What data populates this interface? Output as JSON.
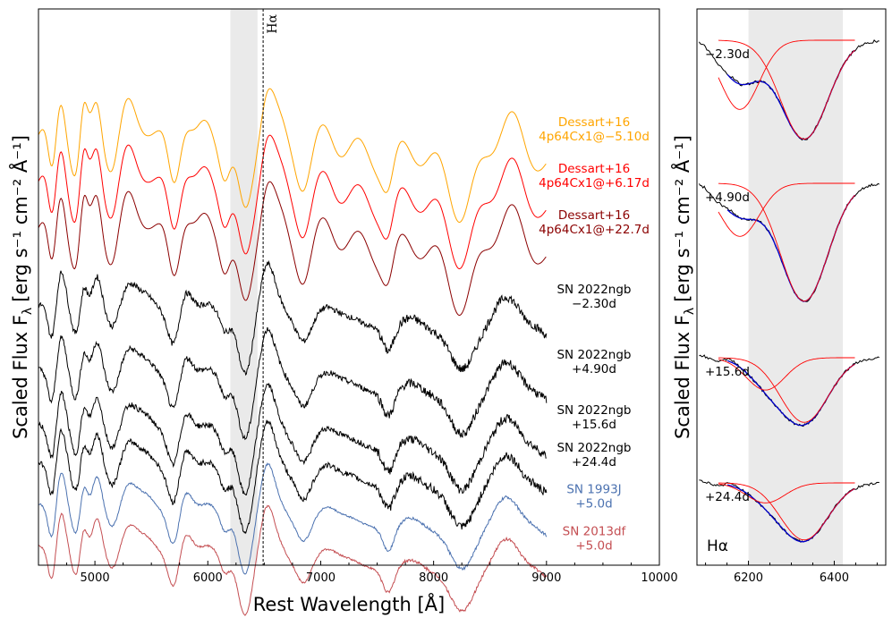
{
  "chart_data": [
    {
      "type": "line",
      "panel": "left",
      "xlabel": "Rest Wavelength [Å]",
      "ylabel": "Scaled Flux F",
      "ylabel_sub": "λ",
      "ylabel_units": "[erg s⁻¹ cm⁻² Å⁻¹]",
      "xlim": [
        4500,
        10000
      ],
      "xticks": [
        5000,
        6000,
        7000,
        8000,
        9000,
        10000
      ],
      "shaded_region": [
        6200,
        6440
      ],
      "vline": 6490,
      "vline_label": "Hα",
      "series": [
        {
          "name": "Dessart+16 4p64Cx1@−5.10d",
          "label_line1": "Dessart+16",
          "label_line2": "4p64Cx1@−5.10d",
          "color": "#ffa500",
          "offset": 8.6,
          "kind": "model"
        },
        {
          "name": "Dessart+16 4p64Cx1@+6.17d",
          "label_line1": "Dessart+16",
          "label_line2": "4p64Cx1@+6.17d",
          "color": "#ff0000",
          "offset": 7.6,
          "kind": "model"
        },
        {
          "name": "Dessart+16 4p64Cx1@+22.7d",
          "label_line1": "Dessart+16",
          "label_line2": "4p64Cx1@+22.7d",
          "color": "#8b0000",
          "offset": 6.6,
          "kind": "model"
        },
        {
          "name": "SN 2022ngb −2.30d",
          "label_line1": "SN 2022ngb",
          "label_line2": "−2.30d",
          "color": "#000000",
          "offset": 5.0,
          "kind": "obs"
        },
        {
          "name": "SN 2022ngb +4.90d",
          "label_line1": "SN 2022ngb",
          "label_line2": "+4.90d",
          "color": "#000000",
          "offset": 3.6,
          "kind": "obs"
        },
        {
          "name": "SN 2022ngb +15.6d",
          "label_line1": "SN 2022ngb",
          "label_line2": "+15.6d",
          "color": "#000000",
          "offset": 2.4,
          "kind": "obs"
        },
        {
          "name": "SN 2022ngb +24.4d",
          "label_line1": "SN 2022ngb",
          "label_line2": "+24.4d",
          "color": "#000000",
          "offset": 1.6,
          "kind": "obs"
        },
        {
          "name": "SN 1993J +5.0d",
          "label_line1": "SN 1993J",
          "label_line2": "+5.0d",
          "color": "#4c72b0",
          "offset": 0.7,
          "kind": "ref"
        },
        {
          "name": "SN 2013df +5.0d",
          "label_line1": "SN 2013df",
          "label_line2": "+5.0d",
          "color": "#c44e52",
          "offset": -0.2,
          "kind": "ref"
        }
      ]
    },
    {
      "type": "line",
      "panel": "right",
      "xlabel": "",
      "ylabel": "Scaled Flux F",
      "ylabel_sub": "λ",
      "ylabel_units": "[erg s⁻¹ cm⁻² Å⁻¹]",
      "xlim": [
        6080,
        6520
      ],
      "xticks": [
        6200,
        6400
      ],
      "shaded_region": [
        6200,
        6420
      ],
      "panel_label": "Hα",
      "epochs": [
        {
          "label": "−2.30d",
          "offset": 3
        },
        {
          "label": "+4.90d",
          "offset": 2
        },
        {
          "label": "+15.6d",
          "offset": 1
        },
        {
          "label": "+24.4d",
          "offset": 0
        }
      ],
      "fit_colors": {
        "data": "#000000",
        "total_fit": "#0000cd",
        "components": "#ff0000"
      }
    }
  ]
}
